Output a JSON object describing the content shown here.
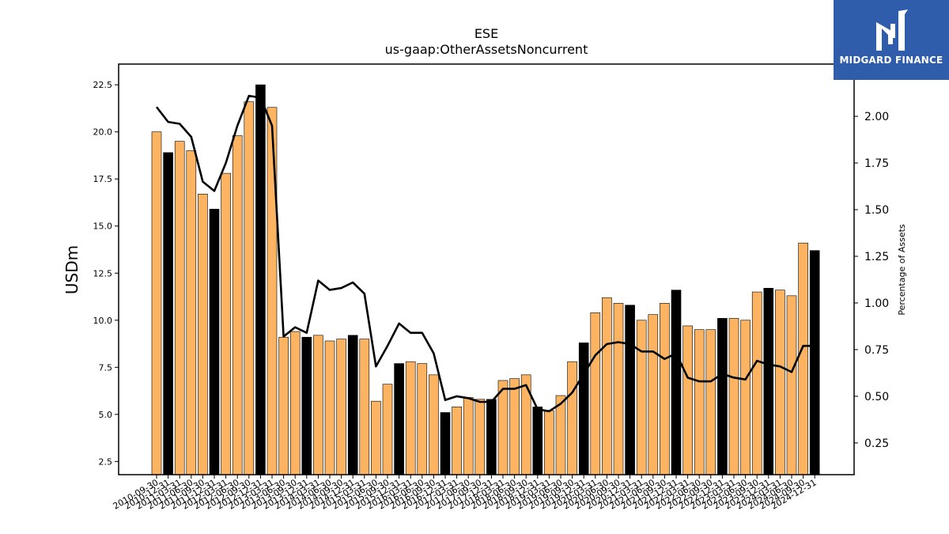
{
  "chart_data": {
    "type": "bar",
    "title": "ESE",
    "subtitle": "us-gaap:OtherAssetsNoncurrent",
    "ylabel": "USDm",
    "y2label": "Percentage of Assets",
    "ylim": [
      1.8,
      23.6
    ],
    "y2lim": [
      0.08,
      2.28
    ],
    "yticks": [
      "2.5",
      "5.0",
      "7.5",
      "10.0",
      "12.5",
      "15.0",
      "17.5",
      "20.0",
      "22.5"
    ],
    "y2ticks": [
      "0.25",
      "0.50",
      "0.75",
      "1.00",
      "1.25",
      "1.50",
      "1.75",
      "2.00"
    ],
    "colors": {
      "bar": "#fdb462",
      "bar_fy": "#000000",
      "line": "#000000"
    },
    "categories": [
      "2010-09-30",
      "2010-12-31",
      "2011-03-31",
      "2011-06-30",
      "2011-09-30",
      "2011-12-31",
      "2012-03-31",
      "2012-06-30",
      "2012-09-30",
      "2012-12-31",
      "2013-03-31",
      "2013-06-30",
      "2013-09-30",
      "2013-12-31",
      "2014-03-31",
      "2014-06-30",
      "2014-09-30",
      "2014-12-31",
      "2015-03-31",
      "2015-06-30",
      "2015-09-30",
      "2015-12-31",
      "2016-03-31",
      "2016-06-30",
      "2016-09-30",
      "2016-12-31",
      "2017-03-31",
      "2017-06-30",
      "2017-09-30",
      "2017-12-31",
      "2018-03-31",
      "2018-06-30",
      "2018-09-30",
      "2018-12-31",
      "2019-03-31",
      "2019-06-30",
      "2019-09-30",
      "2019-12-31",
      "2020-03-31",
      "2020-06-30",
      "2020-09-30",
      "2020-12-31",
      "2021-03-31",
      "2021-06-30",
      "2021-09-30",
      "2021-12-31",
      "2022-03-31",
      "2022-06-30",
      "2022-09-30",
      "2022-12-31",
      "2023-03-31",
      "2023-06-30",
      "2023-09-30",
      "2023-12-31",
      "2024-03-31",
      "2024-06-30",
      "2024-09-30",
      "2024-12-31"
    ],
    "values": [
      20.0,
      18.9,
      19.5,
      19.0,
      16.7,
      15.9,
      17.8,
      19.8,
      21.6,
      22.5,
      21.3,
      9.1,
      9.4,
      9.1,
      9.2,
      8.9,
      9.0,
      9.2,
      9.0,
      5.7,
      6.6,
      7.7,
      7.8,
      7.7,
      7.1,
      5.1,
      5.4,
      5.9,
      5.8,
      5.8,
      6.8,
      6.9,
      7.1,
      5.4,
      5.2,
      6.0,
      7.8,
      8.8,
      10.4,
      11.2,
      10.9,
      10.8,
      10.0,
      10.3,
      10.9,
      11.6,
      9.7,
      9.5,
      9.5,
      10.1,
      10.1,
      10.0,
      11.5,
      11.7,
      11.6,
      11.3,
      14.1,
      13.7
    ],
    "fiscal_year_end": [
      false,
      true,
      false,
      false,
      false,
      true,
      false,
      false,
      false,
      true,
      false,
      false,
      false,
      true,
      false,
      false,
      false,
      true,
      false,
      false,
      false,
      true,
      false,
      false,
      false,
      true,
      false,
      false,
      false,
      true,
      false,
      false,
      false,
      true,
      false,
      false,
      false,
      true,
      false,
      false,
      false,
      true,
      false,
      false,
      false,
      true,
      false,
      false,
      false,
      true,
      false,
      false,
      false,
      true,
      false,
      false,
      false,
      true
    ],
    "pct_assets": [
      2.05,
      1.97,
      1.96,
      1.89,
      1.65,
      1.6,
      1.75,
      1.95,
      2.11,
      2.1,
      1.95,
      0.82,
      0.87,
      0.84,
      1.12,
      1.07,
      1.08,
      1.11,
      1.05,
      0.66,
      0.77,
      0.89,
      0.84,
      0.84,
      0.73,
      0.48,
      0.5,
      0.49,
      0.47,
      0.47,
      0.54,
      0.54,
      0.56,
      0.43,
      0.42,
      0.46,
      0.52,
      0.62,
      0.72,
      0.78,
      0.79,
      0.78,
      0.74,
      0.74,
      0.7,
      0.73,
      0.6,
      0.58,
      0.58,
      0.62,
      0.6,
      0.59,
      0.69,
      0.67,
      0.66,
      0.63,
      0.77,
      0.77
    ]
  },
  "logo": {
    "text": "MIDGARD FINANCE"
  }
}
